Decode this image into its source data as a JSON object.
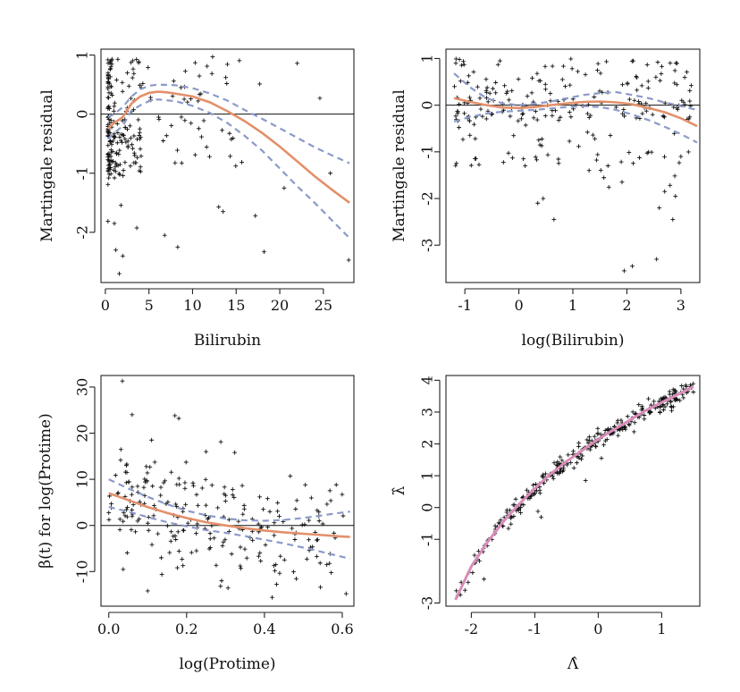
{
  "chart_data": [
    {
      "type": "scatter",
      "panel": "top-left",
      "xlabel": "Bilirubin",
      "ylabel": "Martingale residual",
      "xlim": [
        -0.5,
        28.5
      ],
      "ylim": [
        -2.85,
        1.1
      ],
      "xticks": [
        0,
        5,
        10,
        15,
        20,
        25
      ],
      "yticks": [
        -2,
        -1,
        0,
        1
      ],
      "xtick_labels": [
        "0",
        "5",
        "10",
        "15",
        "20",
        "25"
      ],
      "ytick_labels": [
        "-2",
        "-1",
        "0",
        "1"
      ],
      "reference_line_y": 0,
      "fit": {
        "x": [
          0.3,
          0.6,
          1.0,
          1.5,
          2.0,
          3.0,
          4.0,
          5.0,
          6.0,
          7.0,
          8.0,
          10.0,
          12.0,
          14.0,
          16.0,
          18.0,
          20.0,
          22.0,
          24.0,
          26.0,
          28.0
        ],
        "y": [
          -0.25,
          -0.2,
          -0.15,
          -0.1,
          -0.05,
          0.18,
          0.3,
          0.36,
          0.38,
          0.37,
          0.35,
          0.3,
          0.2,
          0.05,
          -0.12,
          -0.32,
          -0.55,
          -0.8,
          -1.05,
          -1.28,
          -1.5
        ]
      },
      "upper_band": {
        "x": [
          0.3,
          1.0,
          2.0,
          3.0,
          4.0,
          5.0,
          6.0,
          8.0,
          10.0,
          12.0,
          14.0,
          16.0,
          18.0,
          20.0,
          22.0,
          24.0,
          26.0,
          28.0
        ],
        "y": [
          -0.05,
          0.0,
          0.12,
          0.3,
          0.42,
          0.48,
          0.5,
          0.49,
          0.44,
          0.35,
          0.23,
          0.07,
          -0.08,
          -0.24,
          -0.4,
          -0.56,
          -0.7,
          -0.83
        ]
      },
      "lower_band": {
        "x": [
          0.3,
          1.0,
          2.0,
          3.0,
          4.0,
          5.0,
          6.0,
          8.0,
          10.0,
          12.0,
          14.0,
          16.0,
          18.0,
          20.0,
          22.0,
          24.0,
          26.0,
          28.0
        ],
        "y": [
          -0.42,
          -0.32,
          -0.2,
          0.06,
          0.15,
          0.22,
          0.25,
          0.22,
          0.14,
          0.02,
          -0.15,
          -0.37,
          -0.62,
          -0.92,
          -1.22,
          -1.5,
          -1.8,
          -2.1
        ]
      }
    },
    {
      "type": "scatter",
      "panel": "top-right",
      "xlabel": "log(Bilirubin)",
      "ylabel": "Martingale residual",
      "xlim": [
        -1.35,
        3.35
      ],
      "ylim": [
        -3.8,
        1.2
      ],
      "xticks": [
        -1,
        0,
        1,
        2,
        3
      ],
      "yticks": [
        -3,
        -2,
        -1,
        0,
        1
      ],
      "xtick_labels": [
        "-1",
        "0",
        "1",
        "2",
        "3"
      ],
      "ytick_labels": [
        "-3",
        "-2",
        "-1",
        "0",
        "1"
      ],
      "reference_line_y": 0,
      "fit": {
        "x": [
          -1.2,
          -0.9,
          -0.6,
          -0.3,
          0.0,
          0.3,
          0.6,
          0.9,
          1.2,
          1.5,
          1.8,
          2.1,
          2.4,
          2.7,
          3.0,
          3.3
        ],
        "y": [
          0.15,
          0.07,
          0.0,
          -0.05,
          -0.06,
          -0.04,
          0.0,
          0.04,
          0.07,
          0.08,
          0.06,
          0.02,
          -0.06,
          -0.15,
          -0.28,
          -0.45
        ]
      },
      "upper_band": {
        "x": [
          -1.2,
          -0.9,
          -0.6,
          -0.3,
          0.0,
          0.3,
          0.6,
          0.9,
          1.2,
          1.5,
          1.8,
          2.1,
          2.4,
          2.7,
          3.0,
          3.3
        ],
        "y": [
          0.68,
          0.38,
          0.15,
          0.04,
          0.0,
          0.03,
          0.08,
          0.15,
          0.22,
          0.26,
          0.28,
          0.22,
          0.15,
          0.06,
          -0.02,
          -0.1
        ]
      },
      "lower_band": {
        "x": [
          -1.2,
          -0.9,
          -0.6,
          -0.3,
          0.0,
          0.3,
          0.6,
          0.9,
          1.2,
          1.5,
          1.8,
          2.1,
          2.4,
          2.7,
          3.0,
          3.3
        ],
        "y": [
          -0.35,
          -0.25,
          -0.18,
          -0.14,
          -0.12,
          -0.1,
          -0.07,
          -0.04,
          -0.02,
          -0.04,
          -0.1,
          -0.2,
          -0.32,
          -0.46,
          -0.62,
          -0.8
        ]
      }
    },
    {
      "type": "scatter",
      "panel": "bottom-left",
      "xlabel": "log(Protime)",
      "ylabel": "β(t) for log(Protime)",
      "xlim": [
        -0.02,
        0.63
      ],
      "ylim": [
        -17.5,
        32.5
      ],
      "xticks": [
        0.0,
        0.2,
        0.4,
        0.6
      ],
      "yticks": [
        -10,
        0,
        10,
        20,
        30
      ],
      "xtick_labels": [
        "0.0",
        "0.2",
        "0.4",
        "0.6"
      ],
      "ytick_labels": [
        "-10",
        "0",
        "10",
        "20",
        "30"
      ],
      "reference_line_y": 0,
      "fit": {
        "x": [
          0.0,
          0.05,
          0.1,
          0.15,
          0.2,
          0.25,
          0.3,
          0.35,
          0.4,
          0.45,
          0.5,
          0.55,
          0.6,
          0.62
        ],
        "y": [
          7.0,
          5.5,
          4.0,
          2.7,
          1.6,
          0.7,
          0.0,
          -0.6,
          -1.1,
          -1.5,
          -1.8,
          -2.1,
          -2.4,
          -2.5
        ]
      },
      "upper_band": {
        "x": [
          0.0,
          0.05,
          0.1,
          0.15,
          0.2,
          0.25,
          0.3,
          0.35,
          0.4,
          0.45,
          0.5,
          0.55,
          0.6,
          0.62
        ],
        "y": [
          10.0,
          8.0,
          6.2,
          4.6,
          3.2,
          2.2,
          1.5,
          1.1,
          1.0,
          1.2,
          1.6,
          2.2,
          2.8,
          3.0
        ]
      },
      "lower_band": {
        "x": [
          0.0,
          0.05,
          0.1,
          0.15,
          0.2,
          0.25,
          0.3,
          0.35,
          0.4,
          0.45,
          0.5,
          0.55,
          0.6,
          0.62
        ],
        "y": [
          4.0,
          3.0,
          1.8,
          0.7,
          -0.2,
          -1.0,
          -1.6,
          -2.3,
          -3.1,
          -3.9,
          -4.8,
          -5.8,
          -6.8,
          -7.2
        ]
      }
    },
    {
      "type": "scatter",
      "panel": "bottom-right",
      "xlabel": "Λ̂",
      "ylabel": "λ̂",
      "xlim": [
        -2.4,
        1.6
      ],
      "ylim": [
        -3.1,
        4.15
      ],
      "xticks": [
        -2,
        -1,
        0,
        1
      ],
      "yticks": [
        -3,
        -1,
        0,
        1,
        2,
        3,
        4
      ],
      "xtick_labels": [
        "-2",
        "-1",
        "0",
        "1"
      ],
      "ytick_labels": [
        "-3",
        "-1",
        "0",
        "1",
        "2",
        "3",
        "4"
      ],
      "fit": {
        "x": [
          -2.25,
          -2.0,
          -1.75,
          -1.5,
          -1.25,
          -1.0,
          -0.75,
          -0.5,
          -0.25,
          0.0,
          0.25,
          0.5,
          0.75,
          1.0,
          1.25,
          1.5
        ],
        "y": [
          -2.9,
          -1.85,
          -1.1,
          -0.45,
          0.1,
          0.6,
          1.05,
          1.45,
          1.8,
          2.15,
          2.45,
          2.75,
          3.05,
          3.3,
          3.55,
          3.8
        ]
      }
    }
  ]
}
